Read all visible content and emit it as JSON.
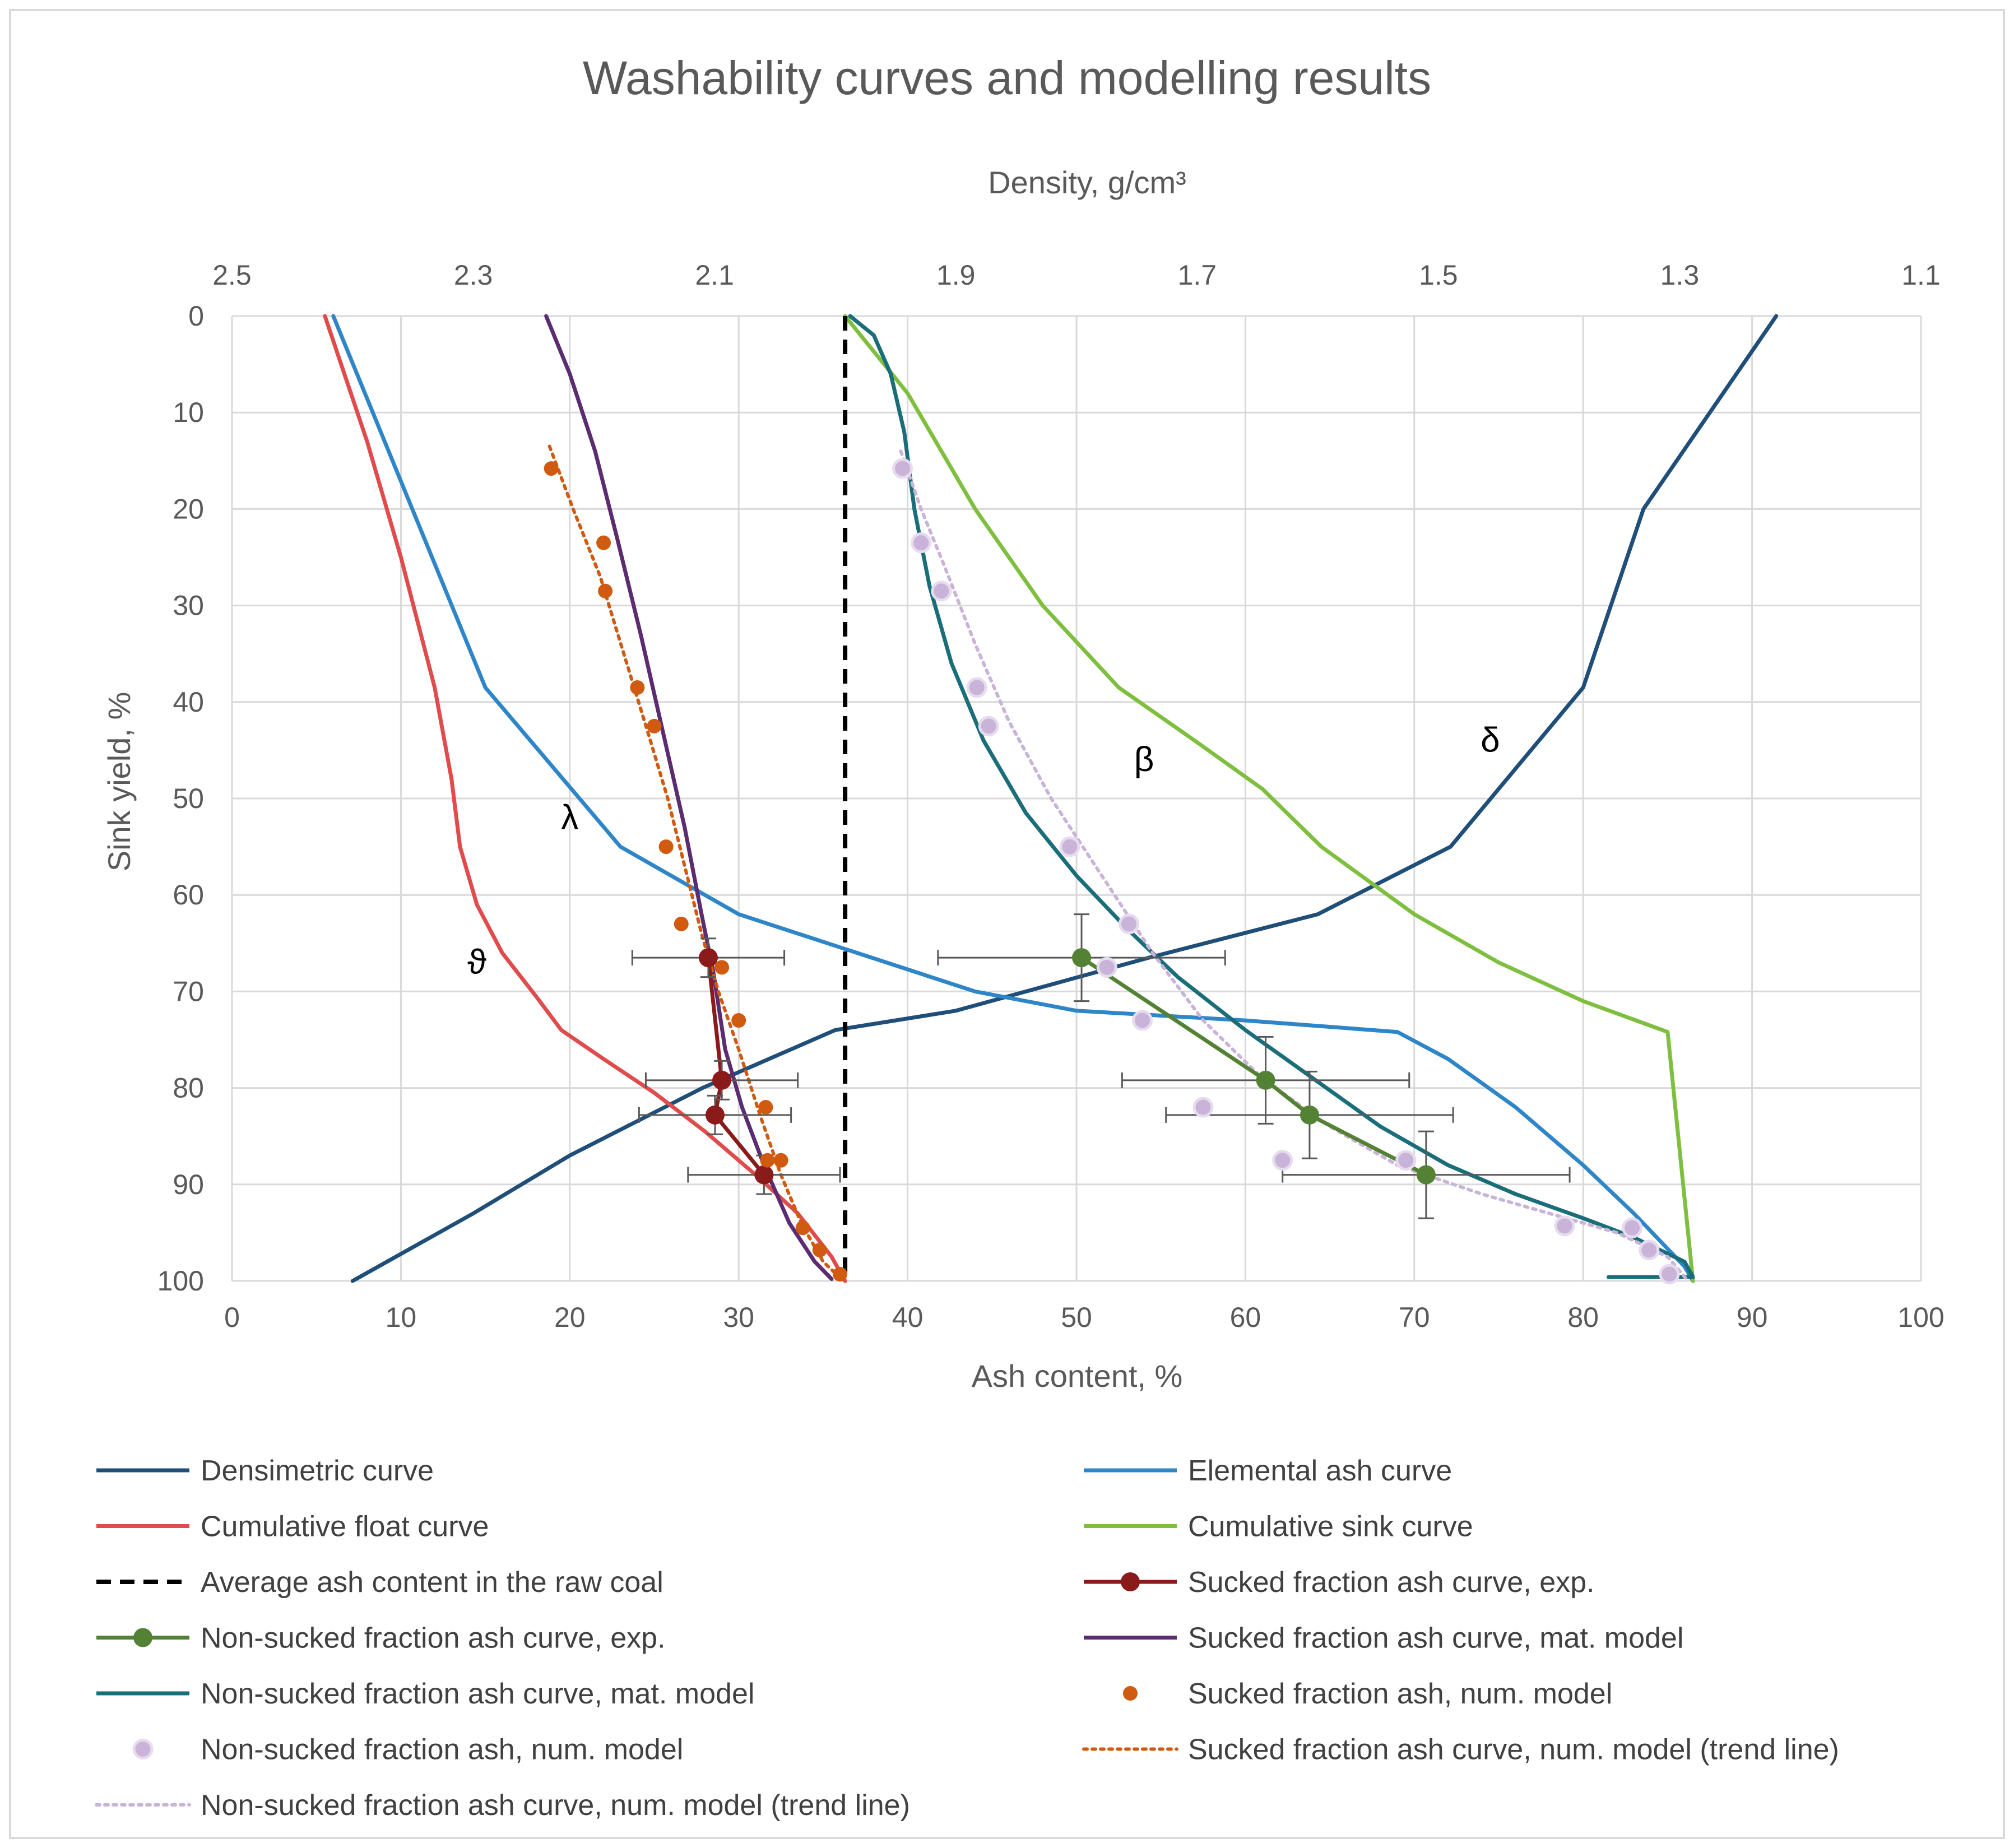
{
  "chart_data": {
    "type": "line",
    "title": "Washability curves and modelling results",
    "top_axis": {
      "label": "Density, g/cm³",
      "min": 1.1,
      "max": 2.5,
      "reversed": true,
      "ticks": [
        "2.5",
        "2.3",
        "2.1",
        "1.9",
        "1.7",
        "1.5",
        "1.3",
        "1.1"
      ]
    },
    "xlabel": "Ash content, %",
    "ylabel": "Sink yield, %",
    "xlim": [
      0,
      100
    ],
    "ylim": [
      0,
      100
    ],
    "y_reversed": true,
    "x_ticks": [
      "0",
      "10",
      "20",
      "30",
      "40",
      "50",
      "60",
      "70",
      "80",
      "90",
      "100"
    ],
    "y_ticks": [
      "0",
      "10",
      "20",
      "30",
      "40",
      "50",
      "60",
      "70",
      "80",
      "90",
      "100"
    ],
    "grid": true,
    "annotations": [
      {
        "text": "λ",
        "x": 20,
        "y": 52
      },
      {
        "text": "ϑ",
        "x": 14.5,
        "y": 67
      },
      {
        "text": "β",
        "x": 54,
        "y": 46
      },
      {
        "text": "δ",
        "x": 74.5,
        "y": 44
      }
    ],
    "series": [
      {
        "name": "Densimetric curve",
        "axis": "density",
        "color": "#1f4e79",
        "style": "line",
        "points": [
          [
            1.22,
            0
          ],
          [
            1.33,
            20
          ],
          [
            1.38,
            38.5
          ],
          [
            1.49,
            55
          ],
          [
            1.6,
            62
          ],
          [
            1.74,
            66.5
          ],
          [
            1.9,
            72
          ],
          [
            2.0,
            74
          ],
          [
            2.11,
            80
          ],
          [
            2.22,
            87
          ],
          [
            2.3,
            93
          ],
          [
            2.4,
            100
          ]
        ]
      },
      {
        "name": "Elemental ash curve",
        "color": "#2e86c8",
        "style": "line",
        "points": [
          [
            6,
            0
          ],
          [
            15,
            38.5
          ],
          [
            23,
            55
          ],
          [
            30,
            62
          ],
          [
            37,
            66
          ],
          [
            44,
            70
          ],
          [
            50,
            72
          ],
          [
            55,
            72.5
          ],
          [
            60,
            73
          ],
          [
            69,
            74.2
          ],
          [
            72,
            77
          ],
          [
            76,
            82
          ],
          [
            80,
            88
          ],
          [
            83,
            93
          ],
          [
            86,
            98.5
          ],
          [
            86.5,
            100
          ]
        ]
      },
      {
        "name": "Cumulative float curve",
        "color": "#e04b4b",
        "style": "line",
        "points": [
          [
            5.5,
            0
          ],
          [
            8,
            13
          ],
          [
            10,
            25
          ],
          [
            12,
            38.5
          ],
          [
            13,
            48
          ],
          [
            13.5,
            55
          ],
          [
            14.5,
            61
          ],
          [
            16,
            66
          ],
          [
            18,
            70.5
          ],
          [
            19.5,
            74
          ],
          [
            22,
            77
          ],
          [
            25,
            80.5
          ],
          [
            28,
            84.5
          ],
          [
            31,
            89
          ],
          [
            33.5,
            93
          ],
          [
            35.5,
            97.5
          ],
          [
            36.3,
            100
          ]
        ]
      },
      {
        "name": "Cumulative sink curve",
        "color": "#7fbf3f",
        "style": "line",
        "points": [
          [
            36.3,
            0
          ],
          [
            40,
            8
          ],
          [
            44,
            20
          ],
          [
            48,
            30
          ],
          [
            52.5,
            38.5
          ],
          [
            57,
            44
          ],
          [
            61,
            49
          ],
          [
            64.5,
            55
          ],
          [
            70,
            62
          ],
          [
            75,
            67
          ],
          [
            80,
            71
          ],
          [
            85,
            74.2
          ],
          [
            86.5,
            100
          ]
        ]
      },
      {
        "name": "Average ash content in the raw coal",
        "color": "#000000",
        "style": "dashed",
        "points": [
          [
            36.3,
            0
          ],
          [
            36.3,
            100
          ]
        ]
      },
      {
        "name": "Sucked fraction ash curve, exp.",
        "color": "#8b1a1a",
        "style": "line-marker",
        "points": [
          [
            28.2,
            66.5
          ],
          [
            29,
            79.2
          ],
          [
            28.6,
            82.8
          ],
          [
            31.5,
            89
          ]
        ],
        "xerr": [
          4.5,
          4.5,
          4.5,
          4.5
        ],
        "yerr": [
          2,
          2,
          2,
          2
        ]
      },
      {
        "name": "Non-sucked fraction ash curve, exp.",
        "color": "#548235",
        "style": "line-marker",
        "points": [
          [
            50.3,
            66.5
          ],
          [
            61.2,
            79.2
          ],
          [
            63.8,
            82.8
          ],
          [
            70.7,
            89
          ]
        ],
        "xerr": [
          8.5,
          8.5,
          8.5,
          8.5
        ],
        "yerr": [
          4.5,
          4.5,
          4.5,
          4.5
        ]
      },
      {
        "name": "Sucked fraction ash curve, mat. model",
        "color": "#5b2c6f",
        "style": "line",
        "points": [
          [
            18.6,
            0
          ],
          [
            20,
            6
          ],
          [
            21.5,
            14
          ],
          [
            22.8,
            23
          ],
          [
            24.2,
            33
          ],
          [
            25.5,
            43
          ],
          [
            26.8,
            53
          ],
          [
            27.8,
            62
          ],
          [
            28.5,
            68
          ],
          [
            29.2,
            76
          ],
          [
            30.2,
            82
          ],
          [
            31.5,
            88
          ],
          [
            33,
            94
          ],
          [
            34.5,
            98
          ],
          [
            35.5,
            99.8
          ]
        ]
      },
      {
        "name": "Non-sucked fraction ash curve, mat. model",
        "color": "#1a6e7a",
        "style": "line",
        "points": [
          [
            36.6,
            0
          ],
          [
            38,
            2
          ],
          [
            39,
            6
          ],
          [
            39.8,
            12
          ],
          [
            40.4,
            20
          ],
          [
            41.3,
            28
          ],
          [
            42.6,
            36
          ],
          [
            44.5,
            44
          ],
          [
            47,
            51.5
          ],
          [
            50,
            58
          ],
          [
            53,
            63.5
          ],
          [
            56,
            68.5
          ],
          [
            60,
            74
          ],
          [
            64,
            79
          ],
          [
            68,
            84
          ],
          [
            72,
            88
          ],
          [
            76,
            91
          ],
          [
            80,
            93.5
          ],
          [
            83,
            95.5
          ],
          [
            86,
            98
          ],
          [
            86.5,
            99.6
          ],
          [
            81.5,
            99.6
          ]
        ]
      },
      {
        "name": "Sucked fraction ash, num. model",
        "color": "#d05a10",
        "style": "marker",
        "points": [
          [
            18.9,
            15.8
          ],
          [
            22,
            23.5
          ],
          [
            22.1,
            28.5
          ],
          [
            24,
            38.5
          ],
          [
            25,
            42.5
          ],
          [
            25.7,
            55
          ],
          [
            26.6,
            63
          ],
          [
            29,
            67.5
          ],
          [
            30,
            73
          ],
          [
            31.6,
            82
          ],
          [
            31.7,
            87.5
          ],
          [
            32.5,
            87.5
          ],
          [
            33.8,
            94.5
          ],
          [
            34.8,
            96.8
          ],
          [
            36,
            99.3
          ]
        ]
      },
      {
        "name": "Non-sucked fraction ash, num. model",
        "color": "#c9b3d9",
        "style": "marker",
        "points": [
          [
            39.7,
            15.8
          ],
          [
            40.8,
            23.5
          ],
          [
            42,
            28.5
          ],
          [
            44.1,
            38.5
          ],
          [
            44.8,
            42.5
          ],
          [
            49.6,
            55
          ],
          [
            53.1,
            63
          ],
          [
            51.8,
            67.5
          ],
          [
            53.9,
            73
          ],
          [
            57.5,
            82
          ],
          [
            62.2,
            87.5
          ],
          [
            69.5,
            87.5
          ],
          [
            78.9,
            94.3
          ],
          [
            82.9,
            94.5
          ],
          [
            83.9,
            96.8
          ],
          [
            85.1,
            99.3
          ]
        ]
      },
      {
        "name": "Sucked fraction ash curve, num. model (trend line)",
        "color": "#d05a10",
        "style": "dotted",
        "points": [
          [
            18.8,
            13.5
          ],
          [
            20.2,
            20
          ],
          [
            21.8,
            27
          ],
          [
            23.2,
            35
          ],
          [
            24.6,
            43
          ],
          [
            25.8,
            50
          ],
          [
            26.8,
            57
          ],
          [
            27.8,
            64
          ],
          [
            28.8,
            70
          ],
          [
            30,
            76
          ],
          [
            31.3,
            83
          ],
          [
            32.5,
            89
          ],
          [
            33.7,
            94
          ],
          [
            35,
            98
          ],
          [
            36.2,
            100
          ]
        ]
      },
      {
        "name": "Non-sucked fraction ash curve, num. model (trend line)",
        "color": "#c9b3d9",
        "style": "dotted",
        "points": [
          [
            39.6,
            14
          ],
          [
            40.8,
            20
          ],
          [
            42.2,
            26
          ],
          [
            44,
            34
          ],
          [
            46,
            42
          ],
          [
            48.5,
            50
          ],
          [
            51.5,
            58
          ],
          [
            54.5,
            66
          ],
          [
            57.5,
            73
          ],
          [
            61,
            79
          ],
          [
            65,
            84
          ],
          [
            69,
            88
          ],
          [
            74,
            91
          ],
          [
            78,
            93
          ],
          [
            82,
            95
          ],
          [
            85,
            97.5
          ],
          [
            86.2,
            100
          ]
        ]
      }
    ],
    "legend": {
      "placement": "bottom",
      "entries": [
        "Densimetric curve",
        "Elemental ash curve",
        "Cumulative float curve",
        "Cumulative sink curve",
        "Average ash content in the raw coal",
        "Sucked fraction ash curve, exp.",
        "Non-sucked fraction ash curve, exp.",
        "Sucked fraction ash curve, mat. model",
        "Non-sucked fraction ash curve, mat. model",
        "Sucked fraction ash, num. model",
        "Non-sucked fraction ash, num. model",
        "Sucked fraction ash curve, num. model (trend line)",
        "Non-sucked fraction ash curve, num. model (trend line)"
      ]
    }
  }
}
